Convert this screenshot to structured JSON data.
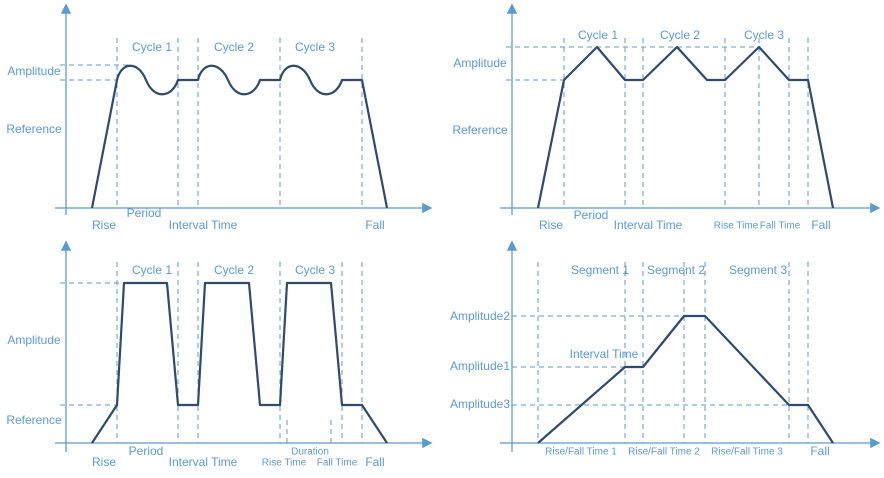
{
  "panels": [
    {
      "labels": [
        "Cycle 1",
        "Cycle 2",
        "Cycle 3",
        "Amplitude",
        "Reference",
        "Rise",
        "Period",
        "Interval Time",
        "Fall"
      ]
    },
    {
      "labels": [
        "Cycle 1",
        "Cycle 2",
        "Cycle 3",
        "Amplitude",
        "Reference",
        "Rise",
        "Period",
        "Interval Time",
        "Rise Time",
        "Fall Time",
        "Fall"
      ]
    },
    {
      "labels": [
        "Cycle 1",
        "Cycle 2",
        "Cycle 3",
        "Amplitude",
        "Reference",
        "Rise",
        "Period",
        "Interval Time",
        "Rise Time",
        "Duration",
        "Fall Time",
        "Fall"
      ]
    },
    {
      "labels": [
        "Segment 1",
        "Segment 2",
        "Segment 3",
        "Amplitude2",
        "Interval Time",
        "Amplitude1",
        "Amplitude3",
        "Rise/Fall Time 1",
        "Rise/Fall Time 2",
        "Rise/Fall Time 3",
        "Fall"
      ]
    }
  ]
}
